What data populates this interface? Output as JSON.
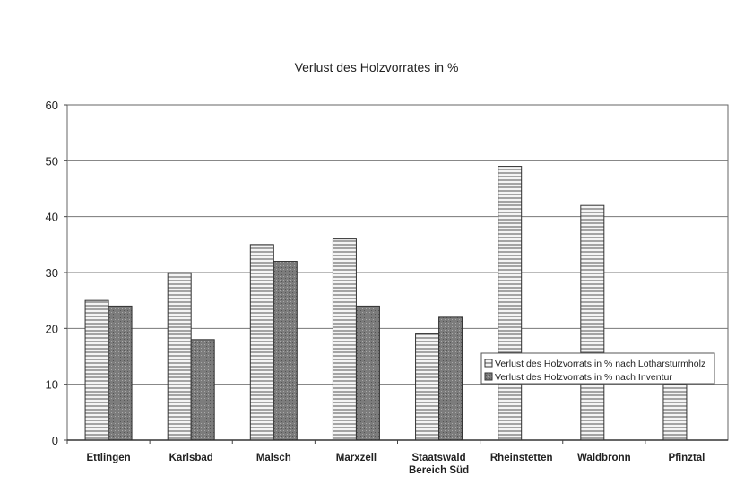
{
  "chart_data": {
    "type": "bar",
    "title": "Verlust des Holzvorrates in %",
    "xlabel": "",
    "ylabel": "",
    "ylim": [
      0,
      60
    ],
    "yticks": [
      0,
      10,
      20,
      30,
      40,
      50,
      60
    ],
    "grid": true,
    "legend_position": "right-lower",
    "categories": [
      "Ettlingen",
      "Karlsbad",
      "Malsch",
      "Marxzell",
      "Staatswald\nBereich Süd",
      "Rheinstetten",
      "Waldbronn",
      "Pfinztal"
    ],
    "series": [
      {
        "name": "Verlust des Holzvorrats in % nach Lotharsturmholz",
        "pattern": "hatched",
        "color": "#e6e6e6",
        "values": [
          25,
          30,
          35,
          36,
          19,
          49,
          42,
          10
        ]
      },
      {
        "name": "Verlust des Holzvorrats in % nach Inventur",
        "pattern": "solid",
        "color": "#7a7a7a",
        "values": [
          24,
          18,
          32,
          24,
          22,
          null,
          null,
          null
        ]
      }
    ]
  }
}
